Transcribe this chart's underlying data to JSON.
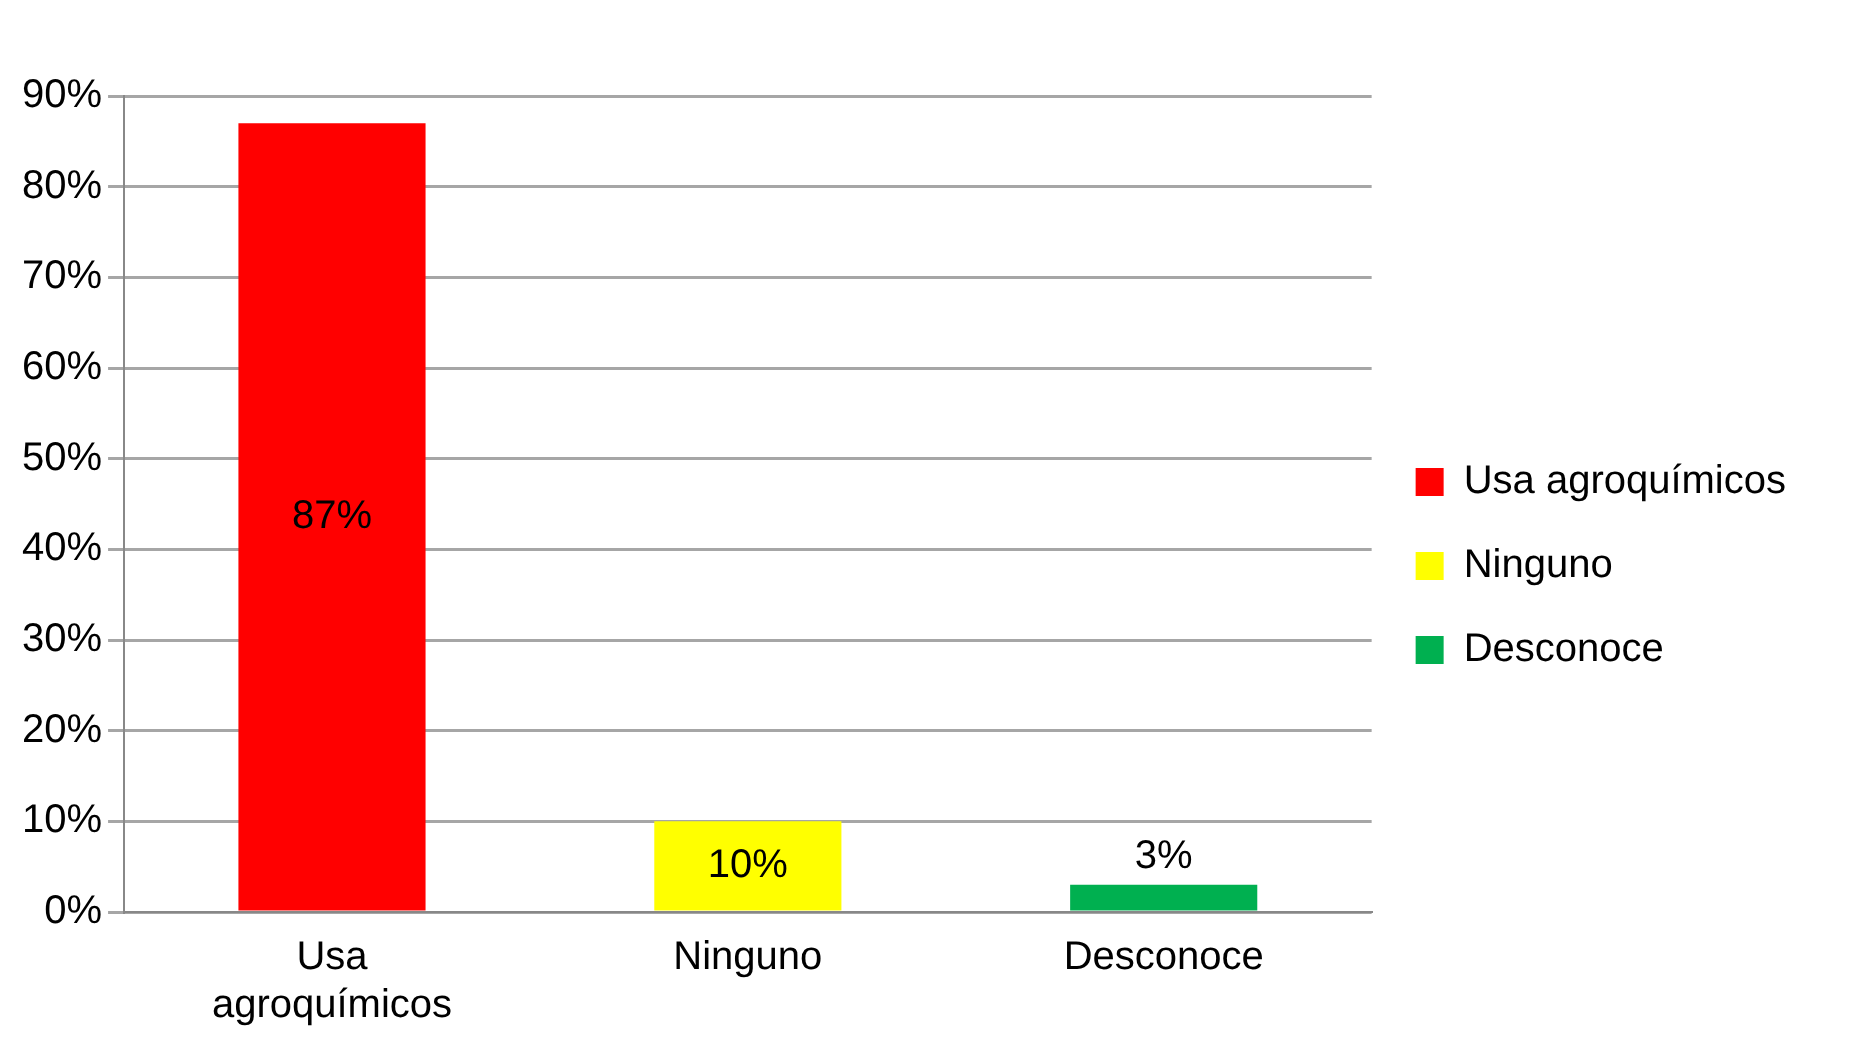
{
  "chart_data": {
    "type": "bar",
    "categories": [
      "Usa agroquímicos",
      "Ninguno",
      "Desconoce"
    ],
    "series": [
      {
        "name": "Usa agroquímicos",
        "color": "#ff0000",
        "values": [
          87,
          null,
          null
        ],
        "value_labels": [
          "87%",
          null,
          null
        ]
      },
      {
        "name": "Ninguno",
        "color": "#ffff00",
        "values": [
          null,
          10,
          null
        ],
        "value_labels": [
          null,
          "10%",
          null
        ]
      },
      {
        "name": "Desconoce",
        "color": "#00b050",
        "values": [
          null,
          null,
          3
        ],
        "value_labels": [
          null,
          null,
          "3%"
        ]
      }
    ],
    "ylim": [
      0,
      90
    ],
    "yticks": [
      {
        "value": 0,
        "label": "0%"
      },
      {
        "value": 10,
        "label": "10%"
      },
      {
        "value": 20,
        "label": "20%"
      },
      {
        "value": 30,
        "label": "30%"
      },
      {
        "value": 40,
        "label": "40%"
      },
      {
        "value": 50,
        "label": "50%"
      },
      {
        "value": 60,
        "label": "60%"
      },
      {
        "value": 70,
        "label": "70%"
      },
      {
        "value": 80,
        "label": "80%"
      },
      {
        "value": 90,
        "label": "90%"
      }
    ],
    "grid": "y",
    "legend": "right"
  }
}
